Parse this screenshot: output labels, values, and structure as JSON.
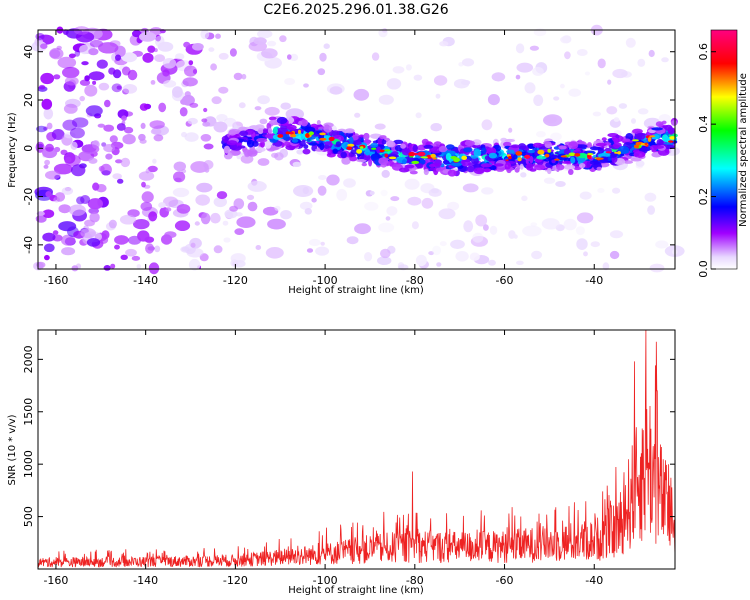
{
  "chart_data": [
    {
      "type": "heatmap",
      "title": "C2E6.2025.296.01.38.G26",
      "xlabel": "Height of straight line (km)",
      "ylabel": "Frequency (Hz)",
      "xlim": [
        -164,
        -22
      ],
      "ylim": [
        -50,
        49
      ],
      "xticks": [
        -160,
        -140,
        -120,
        -100,
        -80,
        -60,
        -40
      ],
      "yticks": [
        -40,
        -20,
        0,
        20,
        40
      ],
      "colorbar": {
        "label": "Normalized spectral amplitude",
        "range": [
          0,
          0.66
        ],
        "ticks": [
          "0.0",
          "0.2",
          "0.4",
          "0.6"
        ],
        "colormap": [
          "#ffffff",
          "#a000ff",
          "#0000ff",
          "#00ffff",
          "#00ff00",
          "#ffff00",
          "#ff0000",
          "#ff00ff"
        ]
      },
      "ridge": {
        "description_points_km": [
          -120,
          -110,
          -100,
          -90,
          -80,
          -70,
          -60,
          -50,
          -40,
          -30,
          -22
        ],
        "center_freq_hz": [
          2,
          7,
          4,
          -1,
          -4,
          -4,
          -3,
          -3,
          -3,
          2,
          5
        ]
      }
    },
    {
      "type": "line",
      "xlabel": "Height of straight line (km)",
      "ylabel": "SNR (10 * v/v)",
      "xlim": [
        -164,
        -22
      ],
      "ylim": [
        0,
        2280
      ],
      "xticks": [
        -160,
        -140,
        -120,
        -100,
        -80,
        -60,
        -40
      ],
      "yticks": [
        500,
        1000,
        1500,
        2000
      ],
      "series": [
        {
          "name": "SNR",
          "color": "#ee2222",
          "envelope_x": [
            -164,
            -140,
            -120,
            -110,
            -100,
            -90,
            -80,
            -70,
            -60,
            -50,
            -40,
            -35,
            -31,
            -28,
            -25,
            -22
          ],
          "envelope_y": [
            110,
            120,
            140,
            190,
            250,
            330,
            380,
            360,
            370,
            420,
            480,
            650,
            1300,
            1800,
            1200,
            700
          ],
          "peaks": [
            {
              "x": -80.5,
              "y": 930
            },
            {
              "x": -31,
              "y": 1980
            },
            {
              "x": -28.5,
              "y": 2280
            },
            {
              "x": -26,
              "y": 1700
            }
          ]
        }
      ]
    }
  ]
}
